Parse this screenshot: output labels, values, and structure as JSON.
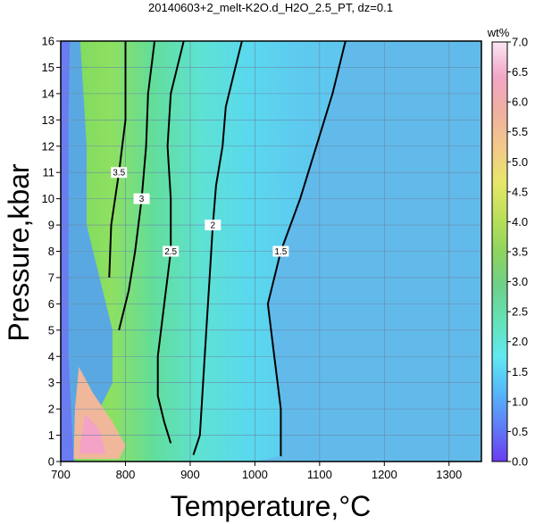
{
  "chart_data": {
    "type": "heatmap",
    "title": "20140603+2_melt-K2O.d_H2O_2.5_PT, dz=0.1",
    "xlabel": "Temperature,°C",
    "ylabel": "Pressure,kbar",
    "xlim": [
      700,
      1350
    ],
    "ylim": [
      0,
      16
    ],
    "x_ticks": [
      "700",
      "800",
      "900",
      "1000",
      "1100",
      "1200",
      "1300"
    ],
    "y_ticks": [
      "0",
      "1",
      "2",
      "3",
      "4",
      "5",
      "6",
      "7",
      "8",
      "9",
      "10",
      "11",
      "12",
      "13",
      "14",
      "15",
      "16"
    ],
    "grid": true,
    "colorbar": {
      "label": "wt%",
      "range": [
        0,
        7
      ],
      "ticks": [
        "0.0",
        "0.5",
        "1.0",
        "1.5",
        "2.0",
        "2.5",
        "3.0",
        "3.5",
        "4.0",
        "4.5",
        "5.0",
        "5.5",
        "6.0",
        "6.5",
        "7.0"
      ],
      "stops": [
        "#6a3cf0",
        "#5f7cf5",
        "#55b8f8",
        "#62e8f0",
        "#63e3b8",
        "#6ed08a",
        "#8ed45e",
        "#bce05a",
        "#e8e66a",
        "#f2c98a",
        "#f0b0a0",
        "#f2a6c6",
        "#fbe6f2"
      ]
    },
    "contours": [
      {
        "label": "1.5",
        "points": [
          [
            1040,
            0.2
          ],
          [
            1040,
            2.0
          ],
          [
            1030,
            4.0
          ],
          [
            1020,
            6.0
          ],
          [
            1040,
            8.0
          ],
          [
            1070,
            10.0
          ],
          [
            1095,
            12.0
          ],
          [
            1120,
            14.0
          ],
          [
            1140,
            16.0
          ]
        ]
      },
      {
        "label": "2",
        "points": [
          [
            905,
            0.25
          ],
          [
            915,
            1.0
          ],
          [
            920,
            3.0
          ],
          [
            925,
            5.0
          ],
          [
            930,
            7.0
          ],
          [
            935,
            9.0
          ],
          [
            940,
            10.5
          ],
          [
            950,
            12.0
          ],
          [
            955,
            13.5
          ],
          [
            970,
            15.0
          ],
          [
            980,
            16.0
          ]
        ]
      },
      {
        "label": "2.5",
        "points": [
          [
            870,
            0.7
          ],
          [
            860,
            1.5
          ],
          [
            850,
            2.5
          ],
          [
            850,
            4.0
          ],
          [
            860,
            6.0
          ],
          [
            870,
            8.0
          ],
          [
            870,
            10.0
          ],
          [
            865,
            12.0
          ],
          [
            870,
            14.0
          ],
          [
            890,
            16.0
          ]
        ]
      },
      {
        "label": "3",
        "points": [
          [
            790,
            5.0
          ],
          [
            805,
            6.5
          ],
          [
            815,
            8.0
          ],
          [
            825,
            10.0
          ],
          [
            832,
            12.0
          ],
          [
            835,
            14.0
          ],
          [
            845,
            16.0
          ]
        ]
      },
      {
        "label": "3.5",
        "points": [
          [
            775,
            7.0
          ],
          [
            778,
            9.0
          ],
          [
            790,
            11.0
          ],
          [
            800,
            13.0
          ],
          [
            800,
            16.0
          ]
        ]
      }
    ]
  }
}
